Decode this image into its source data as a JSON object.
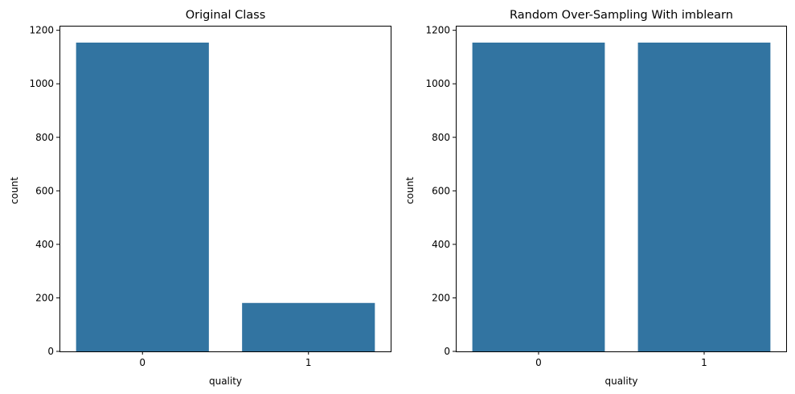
{
  "chart_data": [
    {
      "type": "bar",
      "title": "Original Class",
      "xlabel": "quality",
      "ylabel": "count",
      "categories": [
        "0",
        "1"
      ],
      "values": [
        1154,
        181
      ],
      "ylim": [
        0,
        1217
      ],
      "yticks": [
        0,
        200,
        400,
        600,
        800,
        1000,
        1200
      ],
      "grid": false,
      "color": "#3274a1"
    },
    {
      "type": "bar",
      "title": "Random Over-Sampling With imblearn",
      "xlabel": "quality",
      "ylabel": "count",
      "categories": [
        "0",
        "1"
      ],
      "values": [
        1154,
        1154
      ],
      "ylim": [
        0,
        1217
      ],
      "yticks": [
        0,
        200,
        400,
        600,
        800,
        1000,
        1200
      ],
      "grid": false,
      "color": "#3274a1"
    }
  ]
}
